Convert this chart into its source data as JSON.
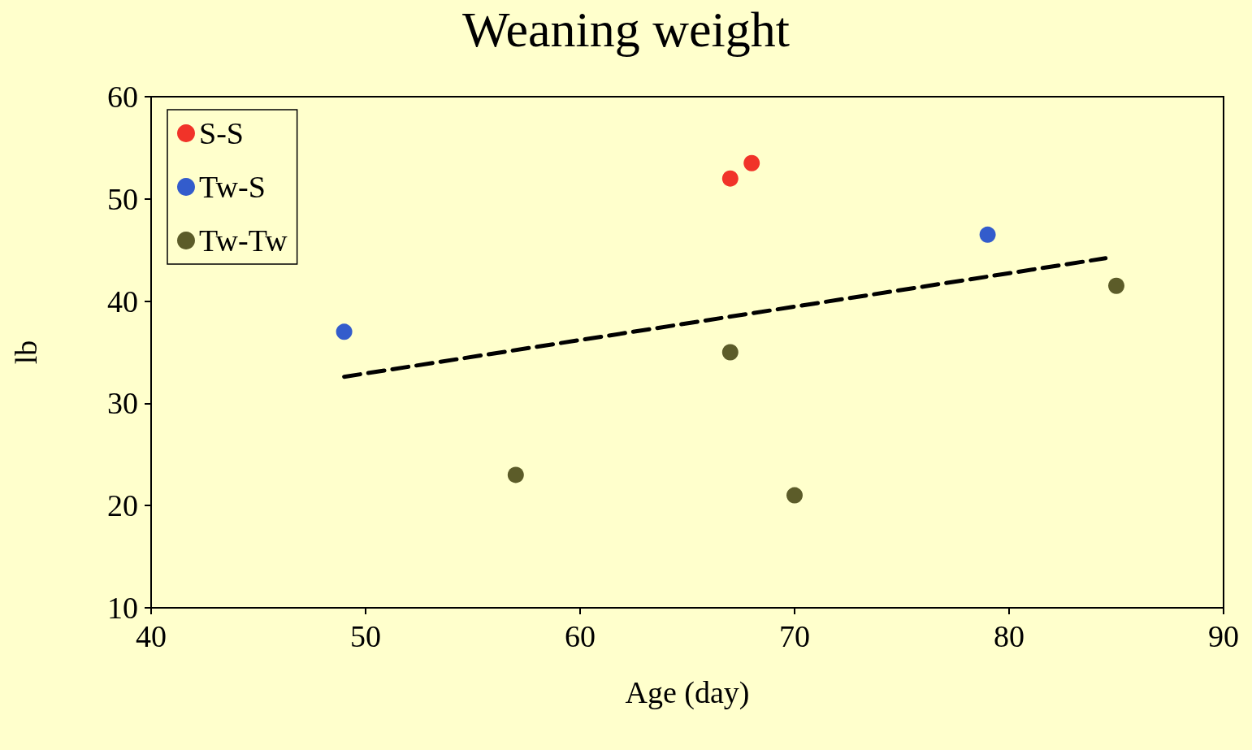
{
  "chart_data": {
    "type": "scatter",
    "title": "Weaning weight",
    "xlabel": "Age (day)",
    "ylabel": "lb",
    "xlim": [
      40,
      90
    ],
    "xticks": [
      40,
      50,
      60,
      70,
      80,
      90
    ],
    "ylim": [
      10,
      60
    ],
    "yticks": [
      10,
      20,
      30,
      40,
      50,
      60
    ],
    "grid": false,
    "legend": "top left",
    "marker": "circle",
    "series": [
      {
        "name": "S-S",
        "color": "#ee0000",
        "x": [
          67,
          68
        ],
        "values": [
          52,
          53.5
        ]
      },
      {
        "name": "Tw-S",
        "color": "#0033cc",
        "x": [
          49,
          79
        ],
        "values": [
          37,
          46.5
        ]
      },
      {
        "name": "Tw-Tw",
        "color": "#333300",
        "x": [
          57,
          67,
          70,
          85
        ],
        "values": [
          23,
          35,
          21,
          41.5
        ]
      },
      {
        "type": "line",
        "color": "#000000",
        "line_style": "dashed",
        "marker": "none",
        "x": [
          49,
          84.5
        ],
        "values": [
          32.6,
          44.2
        ]
      }
    ]
  }
}
